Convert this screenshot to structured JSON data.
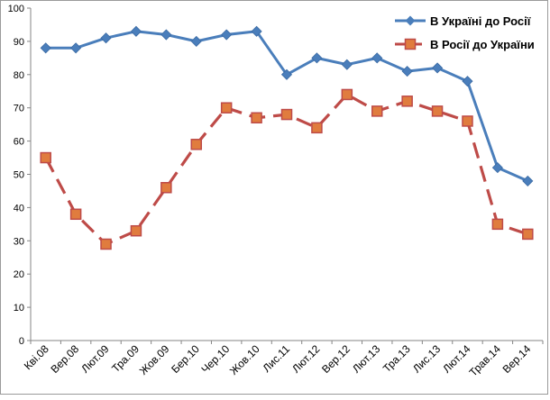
{
  "chart_data": {
    "type": "line",
    "title": "",
    "xlabel": "",
    "ylabel": "",
    "ylim": [
      0,
      100
    ],
    "yticks": [
      0,
      10,
      20,
      30,
      40,
      50,
      60,
      70,
      80,
      90,
      100
    ],
    "grid": false,
    "legend_position": "top-right",
    "categories": [
      "Кві.08",
      "Вер.08",
      "Лют.09",
      "Тра.09",
      "Жов.09",
      "Бер.10",
      "Чер.10",
      "Жов.10",
      "Лис.11",
      "Лют.12",
      "Вер.12",
      "Лют.13",
      "Тра.13",
      "Лис.13",
      "Лют.14",
      "Трав.14",
      "Вер.14"
    ],
    "series": [
      {
        "name": "В Україні до Росії",
        "color": "#4a7ebb",
        "marker": "diamond",
        "line_style": "solid",
        "values": [
          88,
          88,
          91,
          93,
          92,
          90,
          92,
          93,
          80,
          85,
          83,
          85,
          81,
          82,
          78,
          52,
          48
        ]
      },
      {
        "name": "В Росії до України",
        "color": "#be4b48",
        "marker": "square",
        "line_style": "dashed",
        "values": [
          55,
          38,
          29,
          33,
          46,
          59,
          70,
          67,
          68,
          64,
          74,
          69,
          72,
          69,
          66,
          35,
          32
        ]
      }
    ]
  }
}
